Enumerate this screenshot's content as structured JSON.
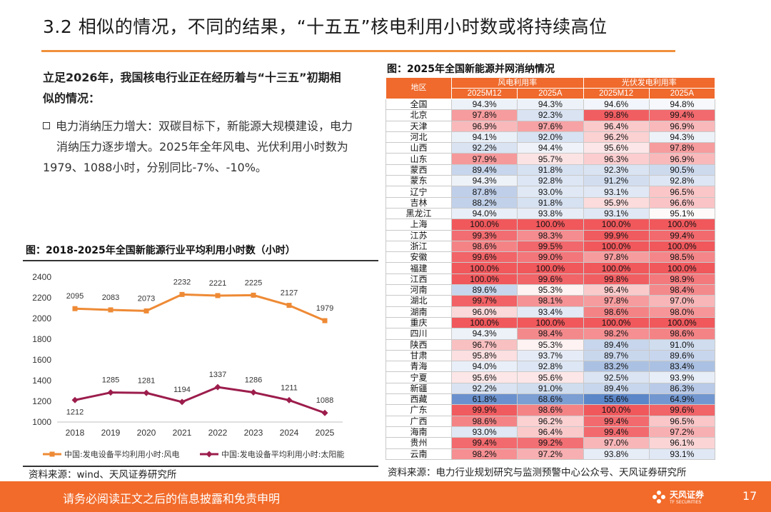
{
  "title": "3.2 相似的情况，不同的结果，“十五五”核电利用小时数或将持续高位",
  "intro": {
    "line1": "立足2026年，我国核电行业正在经历着与“十三五”初期相",
    "line2": "似的情况："
  },
  "bullet": {
    "line1": "电力消纳压力增大：双碳目标下，新能源大规模建设，电力",
    "line2": "消纳压力逐步增大。2025年全年风电、光伏利用小时数为",
    "line3": "1979、1088小时，分别同比-7%、-10%。"
  },
  "left_figure": {
    "title": "图：2018-2025年全国新能源行业平均利用小时数（小时）",
    "source": "资料来源：wind、天风证券研究所"
  },
  "chart_data": {
    "type": "line",
    "title": "2018-2025年全国新能源行业平均利用小时数（小时）",
    "x": [
      "2018",
      "2019",
      "2020",
      "2021",
      "2022",
      "2023",
      "2024",
      "2025"
    ],
    "series": [
      {
        "name": "中国:发电设备平均利用小时:风电",
        "values": [
          2095,
          2083,
          2073,
          2232,
          2221,
          2225,
          2127,
          1979
        ],
        "color": "#ee8a35"
      },
      {
        "name": "中国:发电设备平均利用小时:太阳能",
        "values": [
          1212,
          1285,
          1281,
          1194,
          1337,
          1286,
          1211,
          1088
        ],
        "color": "#9c1d4c"
      }
    ],
    "yticks": [
      "1000",
      "1200",
      "1400",
      "1600",
      "1800",
      "2000",
      "2200",
      "2400"
    ],
    "ylim": [
      1000,
      2400
    ],
    "legend_position": "bottom"
  },
  "right_figure": {
    "title": "图：2025年全国新能源并网消纳情况",
    "source": "资料来源：电力行业规划研究与监测预警中心公众号、天风证券研究所",
    "header": {
      "region": "地区",
      "wind_group": "风电利用率",
      "solar_group": "光伏发电利用率",
      "sub": [
        "2025M12",
        "2025A",
        "2025M12",
        "2025A"
      ]
    },
    "rows": [
      {
        "region": "全国",
        "values": [
          94.3,
          94.3,
          94.6,
          94.8
        ]
      },
      {
        "region": "北京",
        "values": [
          97.8,
          92.3,
          99.8,
          99.4
        ]
      },
      {
        "region": "天津",
        "values": [
          96.9,
          97.6,
          96.4,
          96.9
        ]
      },
      {
        "region": "河北",
        "values": [
          94.1,
          92.0,
          96.2,
          94.3
        ]
      },
      {
        "region": "山西",
        "values": [
          92.2,
          94.4,
          95.6,
          97.8
        ]
      },
      {
        "region": "山东",
        "values": [
          97.9,
          95.7,
          96.3,
          96.9
        ]
      },
      {
        "region": "蒙西",
        "values": [
          89.4,
          91.8,
          92.3,
          90.5
        ]
      },
      {
        "region": "蒙东",
        "values": [
          94.3,
          92.8,
          91.2,
          92.8
        ]
      },
      {
        "region": "辽宁",
        "values": [
          87.8,
          93.0,
          93.1,
          96.5
        ]
      },
      {
        "region": "吉林",
        "values": [
          88.2,
          91.8,
          95.9,
          96.6
        ]
      },
      {
        "region": "黑龙江",
        "values": [
          94.0,
          93.8,
          93.1,
          95.1
        ]
      },
      {
        "region": "上海",
        "values": [
          100.0,
          100.0,
          100.0,
          100.0
        ]
      },
      {
        "region": "江苏",
        "values": [
          99.3,
          98.3,
          99.9,
          99.4
        ]
      },
      {
        "region": "浙江",
        "values": [
          98.6,
          99.5,
          100.0,
          100.0
        ]
      },
      {
        "region": "安徽",
        "values": [
          99.6,
          99.0,
          97.8,
          98.5
        ]
      },
      {
        "region": "福建",
        "values": [
          100.0,
          100.0,
          100.0,
          100.0
        ]
      },
      {
        "region": "江西",
        "values": [
          100.0,
          99.6,
          99.8,
          98.9
        ]
      },
      {
        "region": "河南",
        "values": [
          89.6,
          95.3,
          96.4,
          98.4
        ]
      },
      {
        "region": "湖北",
        "values": [
          99.7,
          98.1,
          97.8,
          97.0
        ]
      },
      {
        "region": "湖南",
        "values": [
          96.0,
          93.4,
          98.6,
          98.0
        ]
      },
      {
        "region": "重庆",
        "values": [
          100.0,
          100.0,
          100.0,
          100.0
        ]
      },
      {
        "region": "四川",
        "values": [
          94.3,
          98.4,
          98.2,
          98.6
        ]
      },
      {
        "region": "陕西",
        "values": [
          96.7,
          95.3,
          89.4,
          91.0
        ]
      },
      {
        "region": "甘肃",
        "values": [
          95.8,
          93.7,
          89.7,
          89.6
        ]
      },
      {
        "region": "青海",
        "values": [
          94.0,
          92.8,
          83.2,
          83.4
        ]
      },
      {
        "region": "宁夏",
        "values": [
          95.6,
          95.6,
          92.5,
          93.9
        ]
      },
      {
        "region": "新疆",
        "values": [
          92.2,
          91.0,
          89.4,
          86.3
        ]
      },
      {
        "region": "西藏",
        "values": [
          61.8,
          68.6,
          55.6,
          64.9
        ]
      },
      {
        "region": "广东",
        "values": [
          99.9,
          98.6,
          100.0,
          99.6
        ]
      },
      {
        "region": "广西",
        "values": [
          98.6,
          96.2,
          99.4,
          96.5
        ]
      },
      {
        "region": "海南",
        "values": [
          93.0,
          96.4,
          99.4,
          97.2
        ]
      },
      {
        "region": "贵州",
        "values": [
          99.4,
          99.2,
          97.0,
          96.1
        ]
      },
      {
        "region": "云南",
        "values": [
          98.2,
          97.2,
          93.8,
          93.1
        ]
      }
    ]
  },
  "footer": {
    "disclaimer": "请务必阅读正文之后的信息披露和免责申明",
    "logo_text": "天风证券",
    "logo_sub": "TF SECURITIES",
    "page": "17"
  },
  "colors": {
    "accent": "#f26b2a",
    "wind_line": "#ee8a35",
    "solar_line": "#9c1d4c",
    "heat_high": "#f0585c",
    "heat_low": "#5b86c8"
  }
}
